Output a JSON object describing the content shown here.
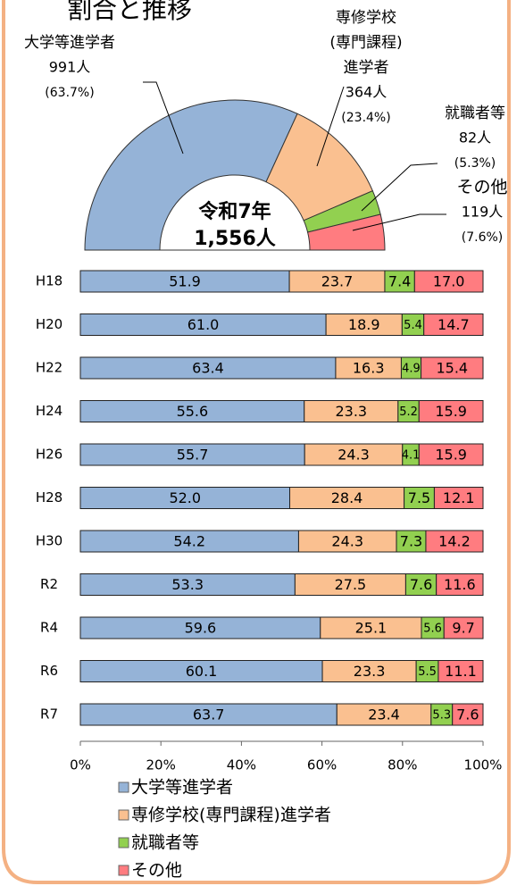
{
  "chart_data": [
    {
      "type": "semi_donut",
      "title": "割合と推移",
      "categories": [
        "大学等進学者",
        "専修学校(専門課程)進学者",
        "就職者等",
        "その他"
      ],
      "label_lines": [
        [
          "大学等進学者"
        ],
        [
          "専修学校",
          "(専門課程)",
          "進学者"
        ],
        [
          "就職者等"
        ],
        [
          "その他"
        ]
      ],
      "values": [
        991,
        364,
        82,
        119
      ],
      "value_labels": [
        "991人",
        "364人",
        "82人",
        "119人"
      ],
      "percents": [
        63.7,
        23.4,
        5.3,
        7.6
      ],
      "percent_labels": [
        "(63.7%)",
        "(23.4%)",
        "(5.3%)",
        "(7.6%)"
      ],
      "colors": [
        "#95b3d7",
        "#fac090",
        "#92d050",
        "#ff7c80"
      ],
      "center_title": "令和7年",
      "total": {
        "value": 1556,
        "label": "1,556人"
      }
    },
    {
      "type": "stacked_barh",
      "categories": [
        "H18",
        "H20",
        "H22",
        "H24",
        "H26",
        "H28",
        "H30",
        "R2",
        "R4",
        "R6",
        "R7"
      ],
      "series": [
        {
          "name": "大学等進学者",
          "color": "#95b3d7",
          "values": [
            51.9,
            61.0,
            63.4,
            55.6,
            55.7,
            52.0,
            54.2,
            53.3,
            59.6,
            60.1,
            63.7
          ],
          "value_labels": [
            "51.9",
            "61.0",
            "63.4",
            "55.6",
            "55.7",
            "52.0",
            "54.2",
            "53.3",
            "59.6",
            "60.1",
            "63.7"
          ]
        },
        {
          "name": "専修学校(専門課程)進学者",
          "color": "#fac090",
          "values": [
            23.7,
            18.9,
            16.3,
            23.3,
            24.3,
            28.4,
            24.3,
            27.5,
            25.1,
            23.3,
            23.4
          ],
          "value_labels": [
            "23.7",
            "18.9",
            "16.3",
            "23.3",
            "24.3",
            "28.4",
            "24.3",
            "27.5",
            "25.1",
            "23.3",
            "23.4"
          ]
        },
        {
          "name": "就職者等",
          "color": "#92d050",
          "values": [
            7.4,
            5.4,
            4.9,
            5.2,
            4.1,
            7.5,
            7.3,
            7.6,
            5.6,
            5.5,
            5.3
          ],
          "value_labels": [
            "7.4",
            "5.4",
            "4.9",
            "5.2",
            "4.1",
            "7.5",
            "7.3",
            "7.6",
            "5.6",
            "5.5",
            "5.3"
          ]
        },
        {
          "name": "その他",
          "color": "#ff7c80",
          "values": [
            17.0,
            14.7,
            15.4,
            15.9,
            15.9,
            12.1,
            14.2,
            11.6,
            9.7,
            11.1,
            7.6
          ],
          "value_labels": [
            "17.0",
            "14.7",
            "15.4",
            "15.9",
            "15.9",
            "12.1",
            "14.2",
            "11.6",
            "9.7",
            "11.1",
            "7.6"
          ]
        }
      ],
      "xlim": [
        0,
        100
      ],
      "xticks": [
        {
          "value": 0,
          "label": "0%"
        },
        {
          "value": 20,
          "label": "20%"
        },
        {
          "value": 40,
          "label": "40%"
        },
        {
          "value": 60,
          "label": "60%"
        },
        {
          "value": 80,
          "label": "80%"
        },
        {
          "value": 100,
          "label": "100%"
        }
      ],
      "legend": "bottom"
    }
  ]
}
